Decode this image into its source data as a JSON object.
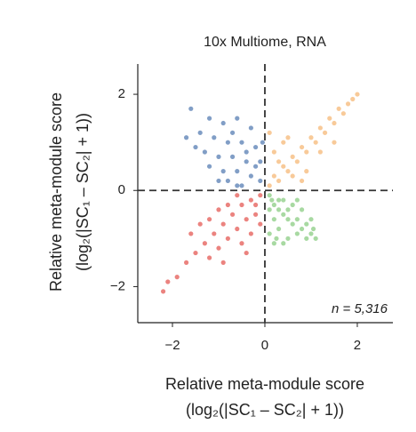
{
  "chart_data": {
    "type": "scatter",
    "title": "10x Multiome, RNA",
    "x_label": [
      "Relative meta-module score",
      "(log₂(|SC₁ – SC₂| + 1))"
    ],
    "y_label": [
      "Relative meta-module score",
      "(log₂(|SC₁ – SC₂| + 1))"
    ],
    "annotation": "n = 5,316",
    "xlim": [
      -2.75,
      2.77
    ],
    "ylim": [
      -2.75,
      2.63
    ],
    "xticks": [
      {
        "value": -2,
        "label": "−2"
      },
      0,
      2
    ],
    "yticks": [
      {
        "value": -2,
        "label": "−2"
      },
      0,
      2
    ],
    "reference_lines": true,
    "series": [
      {
        "color": "#3d6aa8",
        "x": [
          -1.6,
          -1.2,
          -0.9,
          -0.6,
          -0.3,
          -1.4,
          -1.1,
          -0.8,
          -0.5,
          -0.2,
          -1.3,
          -1.0,
          -0.7,
          -0.4,
          -0.1,
          -1.2,
          -0.9,
          -0.6,
          -0.3,
          -0.1,
          -0.8,
          -0.5,
          -1.0,
          -0.2,
          -0.7,
          -1.5,
          -0.4,
          -0.6,
          -1.7,
          -0.05
        ],
        "values": [
          1.7,
          1.5,
          1.4,
          1.5,
          1.3,
          1.2,
          1.1,
          1.0,
          1.0,
          0.9,
          0.8,
          0.7,
          0.7,
          0.6,
          0.6,
          0.5,
          0.4,
          0.4,
          0.3,
          0.2,
          0.2,
          0.1,
          0.2,
          0.5,
          1.2,
          0.9,
          0.8,
          0.1,
          1.1,
          1.0
        ]
      },
      {
        "color": "#f5ad62",
        "x": [
          0.1,
          0.2,
          0.3,
          0.4,
          0.5,
          0.6,
          0.7,
          0.8,
          0.9,
          1.0,
          1.1,
          1.2,
          1.3,
          1.4,
          1.5,
          1.6,
          1.7,
          1.8,
          1.9,
          2.0,
          0.2,
          0.4,
          0.3,
          0.6,
          0.9,
          1.2,
          0.1,
          0.5,
          1.5,
          0.8
        ],
        "values": [
          0.1,
          0.3,
          0.2,
          0.5,
          0.4,
          0.7,
          0.6,
          0.9,
          0.8,
          1.1,
          1.0,
          1.3,
          1.2,
          1.5,
          1.4,
          1.7,
          1.6,
          1.8,
          1.9,
          2.0,
          0.8,
          1.0,
          0.6,
          0.3,
          0.4,
          0.8,
          1.2,
          1.1,
          1.0,
          0.2
        ]
      },
      {
        "color": "#e0413a",
        "x": [
          -0.1,
          -0.3,
          -0.5,
          -0.2,
          -0.4,
          -0.7,
          -0.6,
          -0.9,
          -0.3,
          -0.8,
          -1.1,
          -1.0,
          -1.3,
          -0.5,
          -1.2,
          -1.5,
          -1.4,
          -1.7,
          -1.9,
          -2.2,
          -2.1,
          -0.2,
          -0.6,
          -1.0,
          -0.4,
          -1.6,
          -0.8,
          -1.2,
          -0.1,
          -0.9
        ],
        "values": [
          -0.1,
          -0.2,
          -0.3,
          -0.5,
          -0.6,
          -0.5,
          -0.8,
          -0.7,
          -0.9,
          -1.0,
          -0.9,
          -1.2,
          -1.1,
          -1.1,
          -1.4,
          -1.3,
          -0.7,
          -1.5,
          -1.8,
          -2.1,
          -1.9,
          -0.3,
          -0.1,
          -0.4,
          -1.3,
          -0.9,
          -0.3,
          -0.6,
          -0.7,
          -1.5
        ]
      },
      {
        "color": "#7ac470",
        "x": [
          0.1,
          0.2,
          0.3,
          0.4,
          0.5,
          0.6,
          0.7,
          0.8,
          0.9,
          1.0,
          1.1,
          0.2,
          0.3,
          0.1,
          0.5,
          0.7,
          0.4,
          0.6,
          0.8,
          0.2,
          1.0,
          0.3,
          0.1,
          0.9,
          0.5,
          0.4,
          0.15,
          0.7,
          0.25,
          1.05
        ],
        "values": [
          -0.1,
          -0.3,
          -0.2,
          -0.5,
          -0.4,
          -0.7,
          -0.6,
          -0.8,
          -0.7,
          -0.9,
          -1.0,
          -0.6,
          -0.8,
          -0.9,
          -1.0,
          -0.9,
          -0.2,
          -0.3,
          -0.4,
          -1.1,
          -0.6,
          -0.4,
          -0.4,
          -1.0,
          -0.6,
          -1.1,
          -0.2,
          -0.2,
          -1.0,
          -0.8
        ]
      }
    ]
  }
}
